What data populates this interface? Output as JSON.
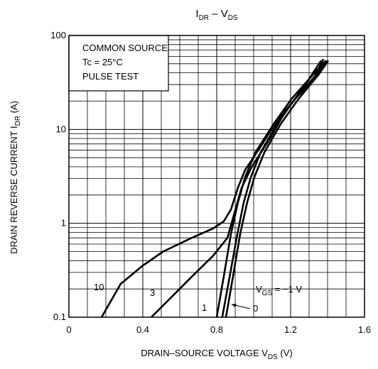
{
  "chart_data": {
    "type": "line",
    "title_parts": [
      "I",
      "DR",
      " – V",
      "DS"
    ],
    "x_label_parts": [
      "DRAIN–SOURCE VOLTAGE   V",
      "DS",
      "   (V)"
    ],
    "y_label_parts": [
      "DRAIN REVERSE CURRENT   I",
      "DR",
      "   (A)"
    ],
    "annotations": [
      "COMMON SOURCE",
      "Tc = 25°C",
      "PULSE TEST"
    ],
    "xlim": [
      0,
      1.6
    ],
    "xticks": [
      0,
      0.4,
      0.8,
      1.2,
      1.6
    ],
    "ylim": [
      0.1,
      100
    ],
    "yticks": [
      0.1,
      1,
      10,
      100
    ],
    "log_y": true,
    "grid": true,
    "color": "#000000",
    "series": [
      {
        "name": "10",
        "x": [
          0.177,
          0.28,
          0.396,
          0.51,
          0.665,
          0.78,
          0.838,
          0.877,
          0.915,
          0.954,
          1.03,
          1.127,
          1.223,
          1.32,
          1.377
        ],
        "values": [
          0.1,
          0.226,
          0.35,
          0.5,
          0.7,
          0.88,
          1.05,
          1.4,
          2.4,
          3.7,
          6.2,
          12.4,
          21,
          33,
          56
        ]
      },
      {
        "name": "3",
        "x": [
          0.446,
          0.55,
          0.665,
          0.78,
          0.858,
          0.896,
          0.935,
          0.99,
          1.088,
          1.165,
          1.28,
          1.365
        ],
        "values": [
          0.1,
          0.16,
          0.27,
          0.45,
          0.7,
          1.29,
          2.4,
          4.0,
          8.0,
          14.8,
          30,
          54
        ]
      },
      {
        "name": "1",
        "x": [
          0.8,
          0.838,
          0.877,
          0.915,
          0.954,
          1.01,
          1.108,
          1.204,
          1.32,
          1.39
        ],
        "values": [
          0.1,
          0.27,
          0.77,
          1.67,
          3.1,
          5.7,
          11.4,
          21,
          38,
          54
        ]
      },
      {
        "name": "0",
        "x": [
          0.85,
          0.888,
          0.927,
          0.965,
          1.004,
          1.058,
          1.146,
          1.242,
          1.35,
          1.404
        ],
        "values": [
          0.1,
          0.27,
          0.77,
          1.67,
          3.1,
          5.7,
          11.4,
          21,
          38,
          54
        ]
      },
      {
        "name_parts": [
          "V",
          "GS",
          " = −1 V"
        ],
        "x": [
          0.83,
          0.87,
          0.912,
          0.946,
          0.985,
          1.038,
          1.127,
          1.223,
          1.338,
          1.396
        ],
        "values": [
          0.1,
          0.27,
          0.77,
          1.67,
          3.1,
          5.7,
          11.4,
          21,
          38,
          54
        ]
      }
    ]
  }
}
